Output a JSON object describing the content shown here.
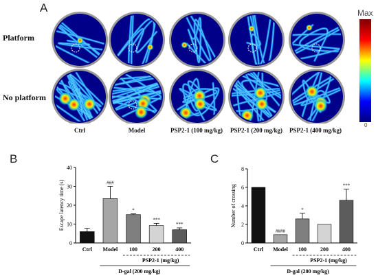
{
  "panel_a": {
    "letter": "A",
    "row_labels": [
      "Platform",
      "No platform"
    ],
    "column_labels": [
      "Ctrl",
      "Model",
      "PSP2-1 (100 mg/kg)",
      "PSP2-1 (200 mg/kg)",
      "PSP2-1 (400 mg/kg)"
    ],
    "colorbar": {
      "max_label": "Max",
      "min_label": "0",
      "colors": [
        "#00007f",
        "#0000ff",
        "#00ffff",
        "#ffff00",
        "#ff0000",
        "#7f0000"
      ]
    }
  },
  "chart_data": [
    {
      "panel": "B",
      "type": "bar",
      "title": "",
      "xlabel": "",
      "ylabel": "Escape latency time (s)",
      "ylim": [
        0,
        40
      ],
      "yticks": [
        0,
        10,
        20,
        30,
        40
      ],
      "categories": [
        "Ctrl",
        "Model",
        "100",
        "200",
        "400"
      ],
      "values": [
        6,
        23.5,
        15,
        9.2,
        7
      ],
      "errors": [
        1.8,
        6.5,
        0.4,
        1.2,
        1.0
      ],
      "significance": [
        "",
        "###",
        "*",
        "***",
        "***"
      ],
      "bar_colors": [
        "#111111",
        "#a6a6a6",
        "#7f7f7f",
        "#d4d4d4",
        "#5c5c5c"
      ],
      "group_label": "PSP2-1 (mg/kg)",
      "outer_label": "D-gal (200 mg/kg)"
    },
    {
      "panel": "C",
      "type": "bar",
      "title": "",
      "xlabel": "",
      "ylabel": "Number of crossing",
      "ylim": [
        0,
        8
      ],
      "yticks": [
        0,
        2,
        4,
        6,
        8
      ],
      "categories": [
        "Ctrl",
        "Model",
        "100",
        "200",
        "400"
      ],
      "values": [
        6,
        0.9,
        2.6,
        2,
        4.6
      ],
      "errors": [
        0,
        0,
        0.6,
        0,
        1.2
      ],
      "significance": [
        "",
        "####",
        "*",
        "",
        "***"
      ],
      "bar_colors": [
        "#111111",
        "#a6a6a6",
        "#7f7f7f",
        "#d4d4d4",
        "#5c5c5c"
      ],
      "group_label": "PSP2-1 (mg/kg)",
      "outer_label": "D-gal (200 mg/kg)"
    }
  ]
}
